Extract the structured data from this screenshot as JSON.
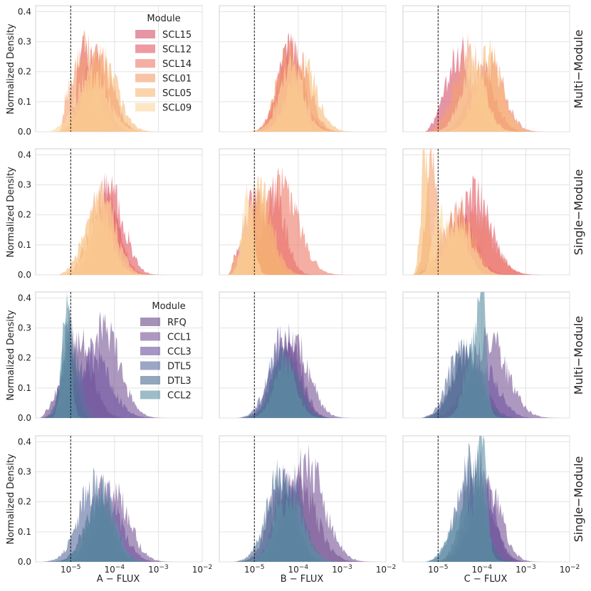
{
  "chart_data": {
    "type": "area",
    "title": "",
    "ylabel": "Normalized Density",
    "columns": [
      "A − FLUX",
      "B − FLUX",
      "C − FLUX"
    ],
    "row_labels": [
      "Multi−Module",
      "Single−Module",
      "Multi−Module",
      "Single−Module"
    ],
    "x_scale": "log",
    "xlim_exp": [
      -5.8,
      -2
    ],
    "x_tick_labels": [
      {
        "exp": -5,
        "base": "10",
        "sup": "−5"
      },
      {
        "exp": -4,
        "base": "10",
        "sup": "−4"
      },
      {
        "exp": -3,
        "base": "10",
        "sup": "−3"
      },
      {
        "exp": -2,
        "base": "10",
        "sup": "−2"
      }
    ],
    "ylim": [
      0,
      0.42
    ],
    "y_ticks": [
      0.0,
      0.1,
      0.2,
      0.3,
      0.4
    ],
    "y_tick_labels": [
      "0.0",
      "0.1",
      "0.2",
      "0.3",
      "0.4"
    ],
    "threshold_exp": -5,
    "legends": [
      {
        "title": "Module",
        "entries": [
          "SCL15",
          "SCL12",
          "SCL14",
          "SCL01",
          "SCL05",
          "SCL09"
        ]
      },
      {
        "title": "Module",
        "entries": [
          "RFQ",
          "CCL1",
          "CCL3",
          "DTL5",
          "DTL3",
          "CCL2"
        ]
      }
    ],
    "palettes": [
      [
        "#d6546e",
        "#e25c66",
        "#ee7d6c",
        "#f39f6e",
        "#f7bb78",
        "#fbd7a0"
      ],
      [
        "#6f4c8b",
        "#7a5a99",
        "#6e56a0",
        "#5e6f9f",
        "#4f6f93",
        "#5f93a6"
      ]
    ],
    "series_params": [
      [
        [
          [
            -4.7,
            0.15,
            0.28,
            -5.1
          ]
        ],
        [
          [
            -4.45,
            0.25,
            0.24,
            -5.25
          ]
        ],
        [
          [
            -4.35,
            0.3,
            0.25,
            -5.35
          ]
        ],
        [
          [
            -4.7,
            0.3,
            0.28,
            -5.25
          ]
        ],
        [
          [
            -4.3,
            0.35,
            0.25,
            -5.3
          ]
        ],
        [
          [
            -4.5,
            0.35,
            0.19,
            -5.5
          ]
        ]
      ],
      [
        [
          [
            -4.2,
            0.25,
            0.27,
            -5.1
          ]
        ],
        [
          [
            -4.15,
            0.3,
            0.26,
            -5.0
          ]
        ],
        [
          [
            -4.0,
            0.28,
            0.24,
            -5.3
          ]
        ],
        [
          [
            -4.25,
            0.25,
            0.26,
            -5.3
          ]
        ],
        [
          [
            -3.9,
            0.32,
            0.22,
            -5.4
          ]
        ],
        [
          [
            -4.15,
            0.28,
            0.21,
            -5.3
          ]
        ]
      ],
      [
        [
          [
            -4.5,
            0.3,
            0.26,
            -5.3
          ]
        ],
        [
          [
            -4.0,
            0.3,
            0.2,
            -5.2
          ]
        ],
        [
          [
            -3.8,
            0.32,
            0.22,
            -5.2
          ]
        ],
        [
          [
            -4.3,
            0.32,
            0.27,
            -5.2
          ]
        ],
        [
          [
            -3.85,
            0.3,
            0.25,
            -5.0
          ]
        ],
        [
          [
            -4.2,
            0.28,
            0.22,
            -5.3
          ]
        ]
      ],
      [
        [
          [
            -4.2,
            0.28,
            0.27,
            -5.2
          ]
        ],
        [
          [
            -4.05,
            0.3,
            0.26,
            -5.2
          ]
        ],
        [
          [
            -4.2,
            0.3,
            0.24,
            -5.3
          ]
        ],
        [
          [
            -4.3,
            0.28,
            0.26,
            -5.2
          ]
        ],
        [
          [
            -4.4,
            0.3,
            0.23,
            -5.3
          ]
        ],
        [
          [
            -4.25,
            0.3,
            0.24,
            -5.2
          ]
        ]
      ],
      [
        [
          [
            -5.0,
            0.27,
            0.25,
            -5.6
          ]
        ],
        [
          [
            -4.55,
            0.25,
            0.27,
            -5.4
          ]
        ],
        [
          [
            -4.4,
            0.4,
            0.29,
            -5.3
          ]
        ],
        [
          [
            -4.9,
            0.25,
            0.25,
            -5.6
          ]
        ],
        [
          [
            -4.9,
            0.3,
            0.28,
            -5.6
          ]
        ],
        [
          [
            -5.15,
            0.13,
            0.26,
            -5.7
          ]
        ]
      ],
      [
        [
          [
            -4.55,
            0.35,
            0.2,
            -5.5
          ]
        ],
        [
          [
            -4.2,
            0.4,
            0.27,
            -5.3
          ]
        ],
        [
          [
            -4.15,
            0.4,
            0.19,
            -5.3
          ]
        ],
        [
          [
            -5.15,
            0.13,
            0.33,
            -5.6
          ],
          [
            -4.5,
            0.3,
            0.21,
            -5.6
          ]
        ],
        [
          [
            -5.3,
            0.09,
            0.4,
            -5.6
          ],
          [
            -4.6,
            0.25,
            0.17,
            -5.6
          ]
        ],
        [
          [
            -5.0,
            0.12,
            0.2,
            -5.5
          ],
          [
            -4.5,
            0.3,
            0.18,
            -5.5
          ]
        ]
      ],
      [
        [
          [
            -4.85,
            0.32,
            0.26,
            -5.7
          ]
        ],
        [
          [
            -4.25,
            0.37,
            0.29,
            -5.5
          ]
        ],
        [
          [
            -4.5,
            0.4,
            0.2,
            -5.6
          ]
        ],
        [
          [
            -5.0,
            0.2,
            0.27,
            -5.7
          ]
        ],
        [
          [
            -5.05,
            0.15,
            0.31,
            -5.7
          ]
        ],
        [
          [
            -5.1,
            0.1,
            0.37,
            -5.7
          ]
        ]
      ],
      [
        [
          [
            -4.2,
            0.28,
            0.28,
            -5.3
          ]
        ],
        [
          [
            -4.1,
            0.35,
            0.25,
            -5.3
          ]
        ],
        [
          [
            -4.3,
            0.3,
            0.28,
            -5.3
          ]
        ],
        [
          [
            -4.4,
            0.3,
            0.22,
            -5.4
          ]
        ],
        [
          [
            -4.3,
            0.3,
            0.21,
            -5.4
          ]
        ],
        [
          [
            -4.3,
            0.25,
            0.18,
            -5.5
          ]
        ]
      ],
      [
        [
          [
            -4.3,
            0.33,
            0.22,
            -5.4
          ]
        ],
        [
          [
            -3.85,
            0.42,
            0.26,
            -5.2
          ]
        ],
        [
          [
            -4.0,
            0.35,
            0.18,
            -5.3
          ]
        ],
        [
          [
            -4.45,
            0.3,
            0.24,
            -5.4
          ]
        ],
        [
          [
            -4.35,
            0.32,
            0.22,
            -5.4
          ]
        ],
        [
          [
            -4.2,
            0.2,
            0.22,
            -5.3
          ],
          [
            -4.0,
            0.08,
            0.4,
            -5.3
          ]
        ]
      ],
      [
        [
          [
            -4.3,
            0.25,
            0.23,
            -5.6
          ]
        ],
        [
          [
            -4.0,
            0.35,
            0.22,
            -5.6
          ]
        ],
        [
          [
            -4.2,
            0.35,
            0.22,
            -5.7
          ]
        ],
        [
          [
            -4.5,
            0.33,
            0.25,
            -5.7
          ]
        ],
        [
          [
            -4.35,
            0.32,
            0.21,
            -5.7
          ]
        ],
        [
          [
            -4.3,
            0.3,
            0.24,
            -5.7
          ]
        ]
      ],
      [
        [
          [
            -4.0,
            0.4,
            0.26,
            -5.4
          ]
        ],
        [
          [
            -3.8,
            0.4,
            0.32,
            -5.3
          ]
        ],
        [
          [
            -4.35,
            0.3,
            0.27,
            -5.5
          ]
        ],
        [
          [
            -4.2,
            0.3,
            0.3,
            -5.5
          ]
        ],
        [
          [
            -4.4,
            0.32,
            0.28,
            -5.5
          ]
        ],
        [
          [
            -4.2,
            0.32,
            0.22,
            -5.4
          ]
        ]
      ],
      [
        [
          [
            -4.0,
            0.3,
            0.23,
            -5.2
          ]
        ],
        [
          [
            -3.9,
            0.32,
            0.27,
            -5.3
          ]
        ],
        [
          [
            -4.05,
            0.3,
            0.3,
            -5.3
          ]
        ],
        [
          [
            -4.3,
            0.3,
            0.3,
            -5.3
          ]
        ],
        [
          [
            -4.2,
            0.25,
            0.34,
            -5.3
          ]
        ],
        [
          [
            -4.0,
            0.1,
            0.38,
            -5.3
          ],
          [
            -4.4,
            0.3,
            0.18,
            -5.3
          ]
        ]
      ]
    ]
  }
}
